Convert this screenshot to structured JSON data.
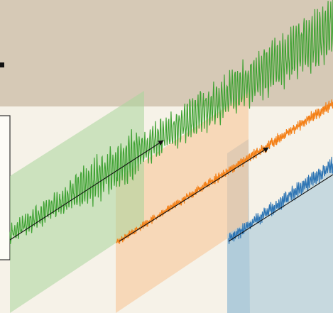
{
  "colors": {
    "background_top": "#d6c9b6",
    "background_bottom": "#f6f2e8",
    "panel_green": "#a9d59a",
    "panel_orange": "#f9c797",
    "panel_blue": "#a9c8d8",
    "signal_green": "#3fa233",
    "signal_orange": "#f47f15",
    "signal_blue": "#2b73b3",
    "frame_fill": "#fdfcf6",
    "frame_stroke": "#333333",
    "trend_line": "#111111"
  },
  "icons": {
    "trend_arrow": "arrow-head-icon"
  },
  "series": [
    {
      "color_key": "green",
      "shape": "growing-oscillation",
      "amplitude": "large"
    },
    {
      "color_key": "orange",
      "shape": "noisy-trend",
      "amplitude": "small"
    },
    {
      "color_key": "blue",
      "shape": "noisy-trend",
      "amplitude": "medium"
    }
  ]
}
